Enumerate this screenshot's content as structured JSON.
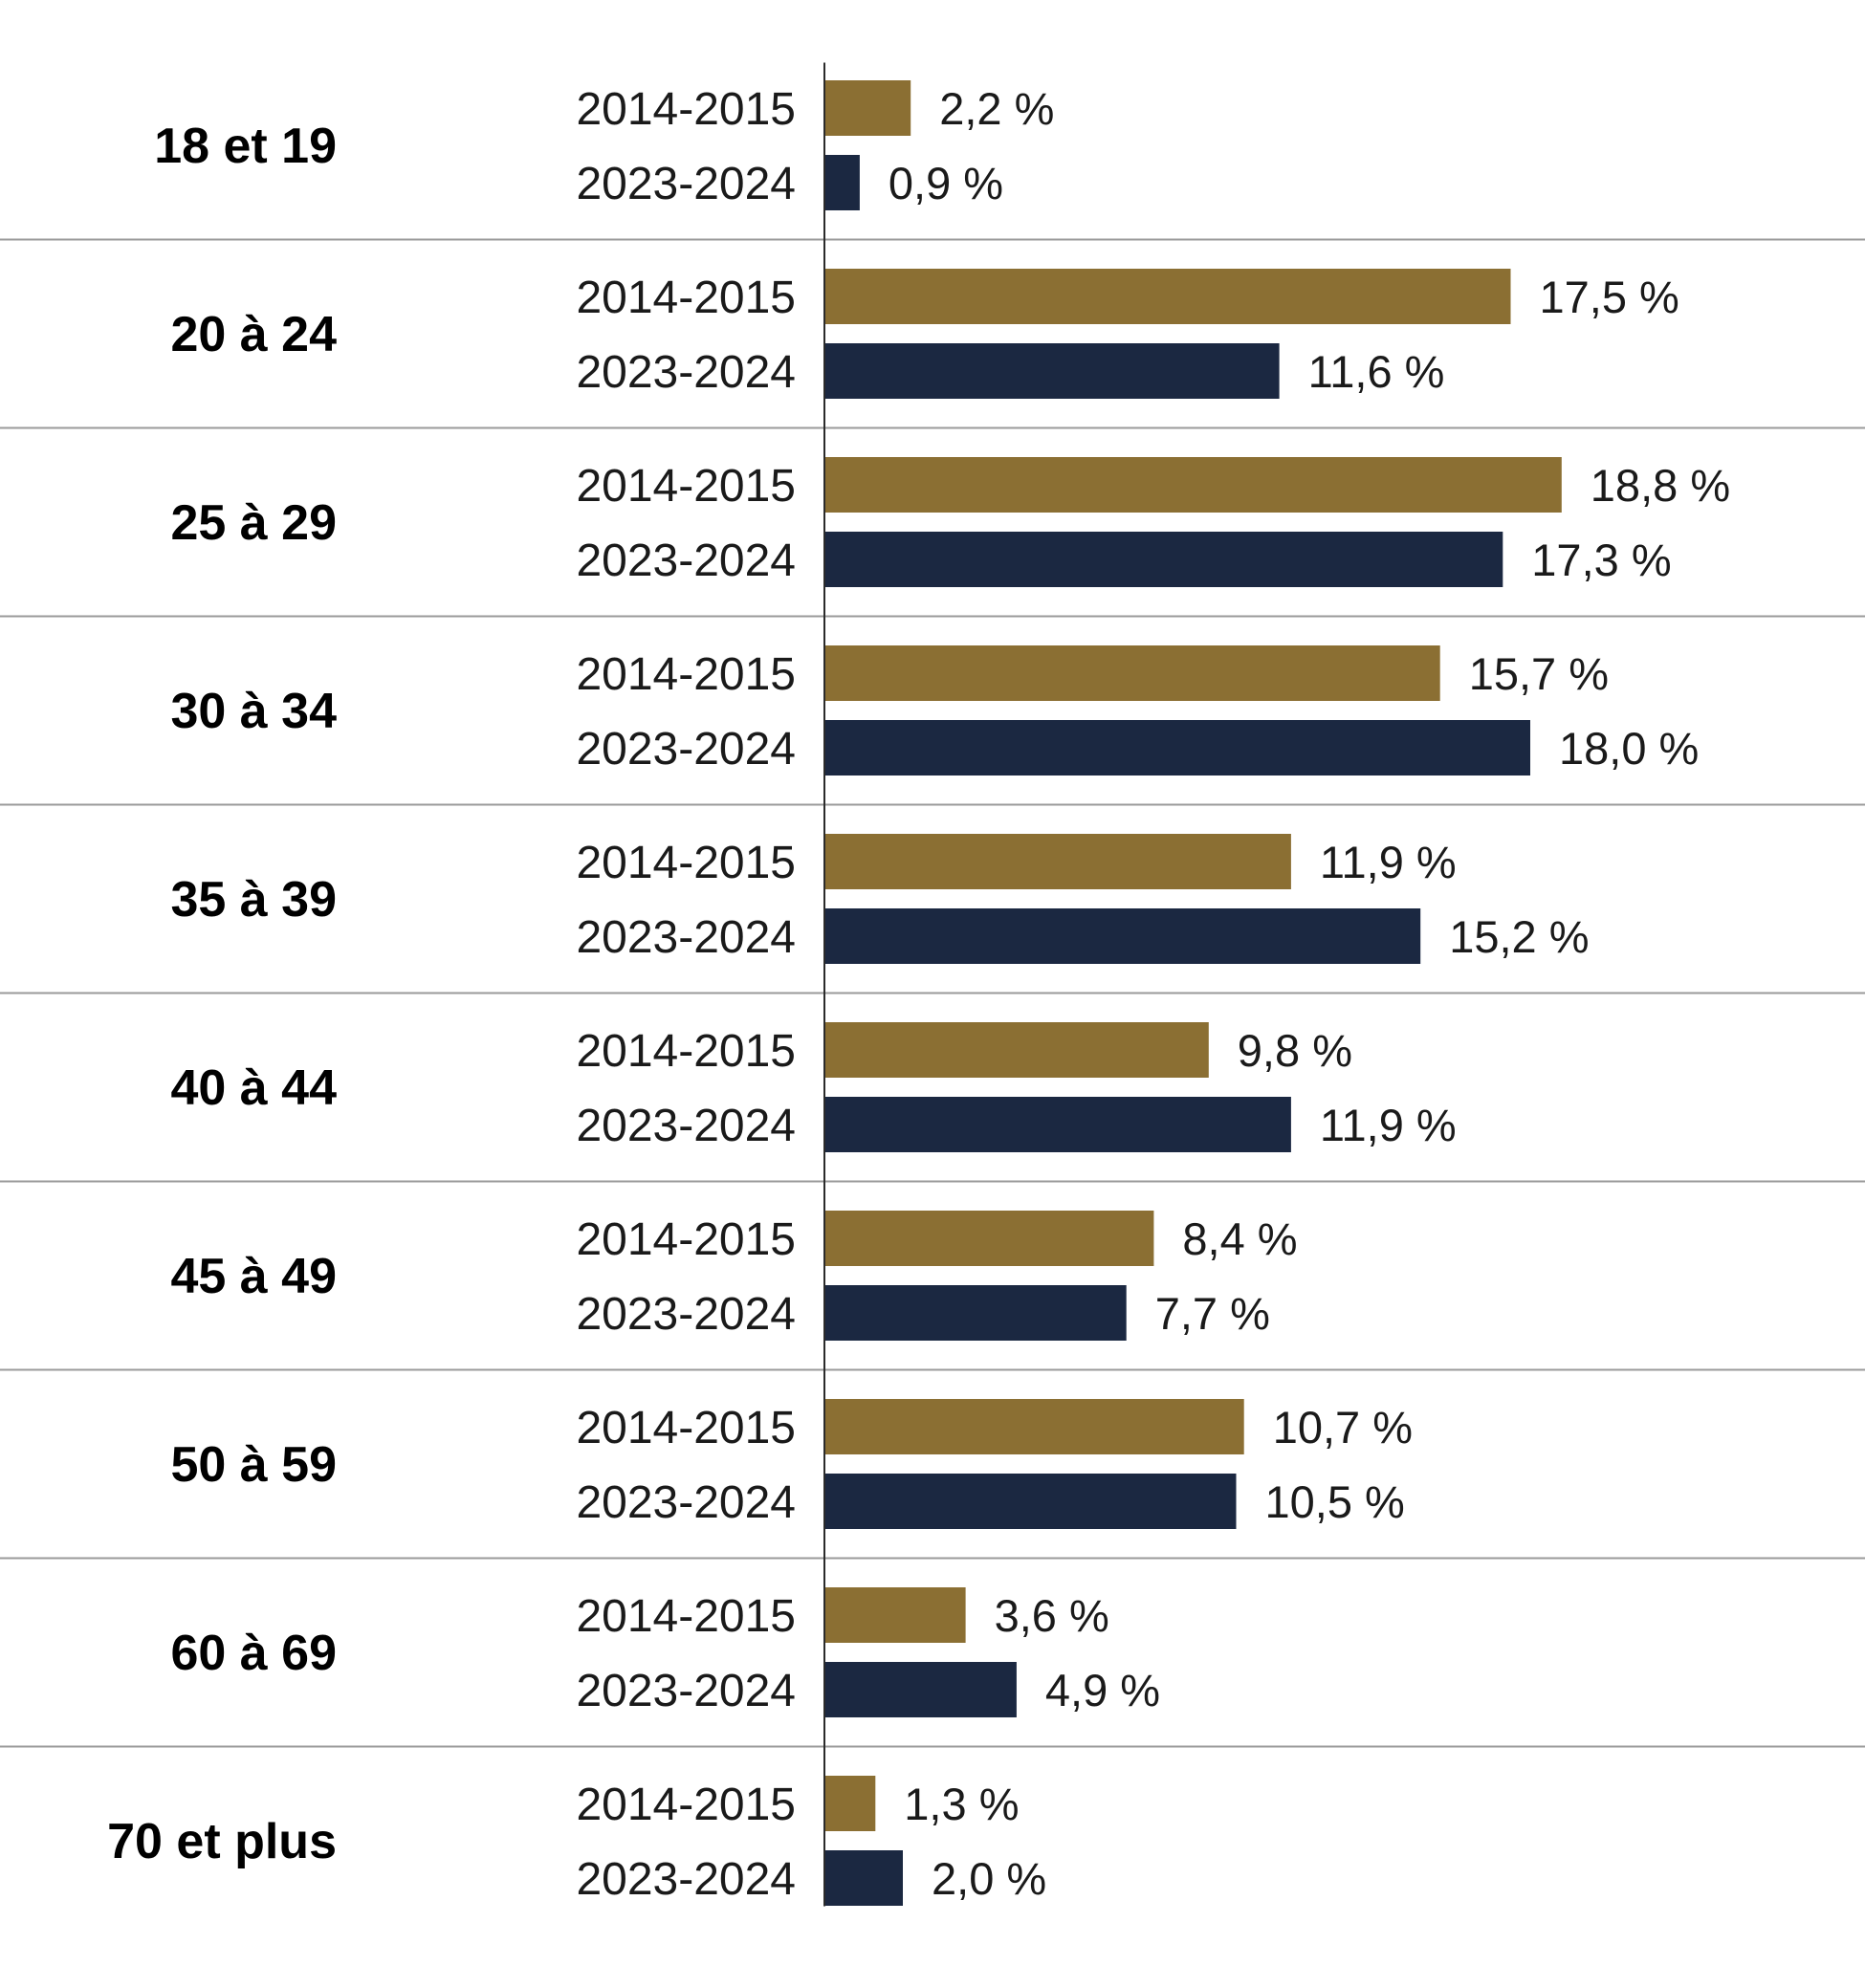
{
  "chart_data": {
    "type": "bar",
    "orientation": "horizontal",
    "categories": [
      "18 et 19",
      "20 à 24",
      "25 à 29",
      "30 à 34",
      "35 à 39",
      "40 à 44",
      "45 à 49",
      "50 à 59",
      "60 à 69",
      "70 et plus"
    ],
    "series": [
      {
        "name": "2014-2015",
        "color": "#8b6f33",
        "values": [
          2.2,
          17.5,
          18.8,
          15.7,
          11.9,
          9.8,
          8.4,
          10.7,
          3.6,
          1.3
        ],
        "labels": [
          "2,2 %",
          "17,5 %",
          "18,8 %",
          "15,7 %",
          "11,9 %",
          "9,8 %",
          "8,4 %",
          "10,7 %",
          "3,6 %",
          "1,3 %"
        ]
      },
      {
        "name": "2023-2024",
        "color": "#1b2841",
        "values": [
          0.9,
          11.6,
          17.3,
          18.0,
          15.2,
          11.9,
          7.7,
          10.5,
          4.9,
          2.0
        ],
        "labels": [
          "0,9 %",
          "11,6 %",
          "17,3 %",
          "18,0 %",
          "15,2 %",
          "11,9 %",
          "7,7 %",
          "10,5 %",
          "4,9 %",
          "2,0 %"
        ]
      }
    ],
    "title": "",
    "xlabel": "",
    "ylabel": "",
    "xlim": [
      0,
      20
    ],
    "grid": false,
    "legend": "none"
  }
}
